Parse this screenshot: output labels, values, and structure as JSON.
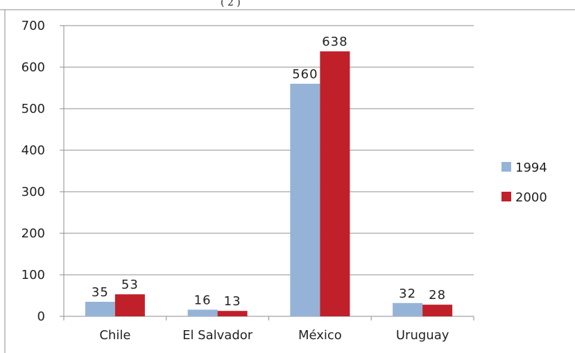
{
  "chart_data": {
    "type": "bar",
    "title": "",
    "xlabel": "",
    "ylabel": "",
    "categories": [
      "Chile",
      "El Salvador",
      "México",
      "Uruguay"
    ],
    "series": [
      {
        "name": "1994",
        "values": [
          35,
          16,
          560,
          32
        ],
        "color": "#95b3d7"
      },
      {
        "name": "2000",
        "values": [
          53,
          13,
          638,
          28
        ],
        "color": "#c0202a"
      }
    ],
    "ylim": [
      0,
      700
    ],
    "yticks": [
      "0",
      "100",
      "200",
      "300",
      "400",
      "500",
      "600",
      "700"
    ],
    "grid": true,
    "legend_position": "right",
    "data_labels": true
  },
  "clipped_title_fragment": "(              2 )"
}
